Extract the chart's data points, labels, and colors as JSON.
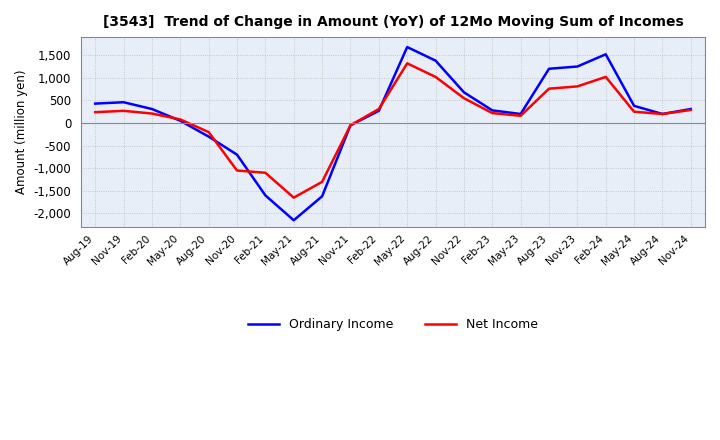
{
  "title": "[3543]  Trend of Change in Amount (YoY) of 12Mo Moving Sum of Incomes",
  "ylabel": "Amount (million yen)",
  "ylim": [
    -2300,
    1900
  ],
  "yticks": [
    -2000,
    -1500,
    -1000,
    -500,
    0,
    500,
    1000,
    1500
  ],
  "x_labels": [
    "Aug-19",
    "Nov-19",
    "Feb-20",
    "May-20",
    "Aug-20",
    "Nov-20",
    "Feb-21",
    "May-21",
    "Aug-21",
    "Nov-21",
    "Feb-22",
    "May-22",
    "Aug-22",
    "Nov-22",
    "Feb-23",
    "May-23",
    "Aug-23",
    "Nov-23",
    "Feb-24",
    "May-24",
    "Aug-24",
    "Nov-24"
  ],
  "ordinary_income": [
    430,
    460,
    310,
    50,
    -300,
    -700,
    -1600,
    -2150,
    -1620,
    -50,
    270,
    1680,
    1380,
    680,
    280,
    200,
    1200,
    1250,
    1520,
    380,
    200,
    310
  ],
  "net_income": [
    240,
    270,
    210,
    80,
    -200,
    -1050,
    -1100,
    -1650,
    -1300,
    -50,
    310,
    1320,
    1020,
    550,
    220,
    160,
    760,
    810,
    1020,
    250,
    200,
    290
  ],
  "ordinary_color": "#0000ff",
  "net_color": "#ff0000",
  "line_width": 1.8,
  "grid_color": "#bbbbbb",
  "plot_bg_color": "#e8eef8",
  "background_color": "#ffffff",
  "legend_labels": [
    "Ordinary Income",
    "Net Income"
  ]
}
